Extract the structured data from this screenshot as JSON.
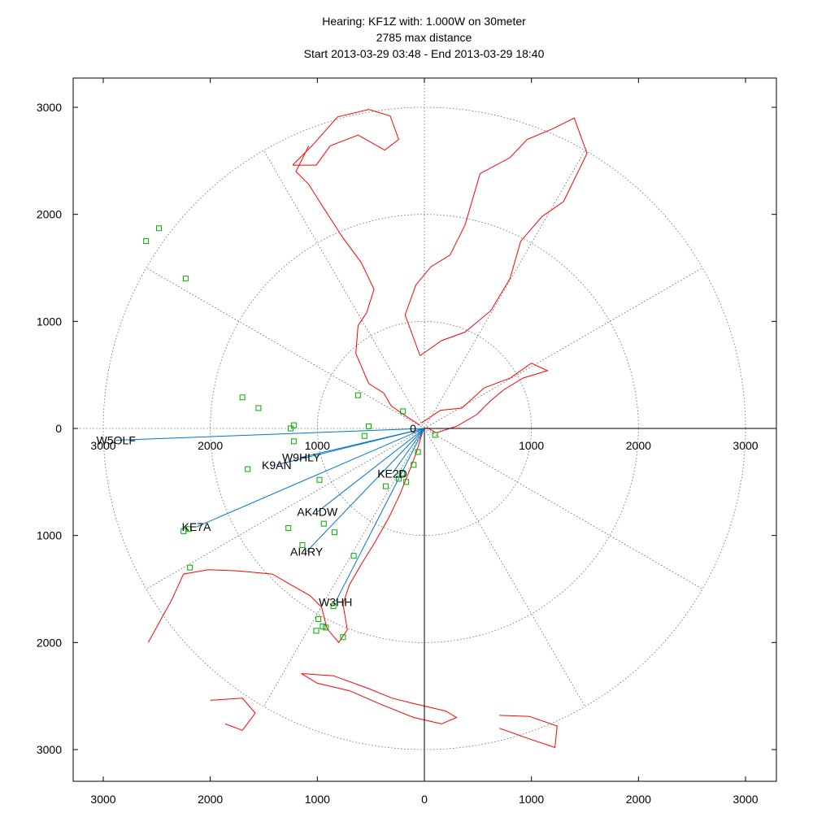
{
  "header": {
    "line1": "Hearing: KF1Z with: 1.000W on 30meter",
    "line2": "2785 max distance",
    "line3": "Start 2013-03-29 03:48 - End 2013-03-29 18:40"
  },
  "chart_data": {
    "type": "scatter",
    "title": "Hearing: KF1Z with: 1.000W on 30meter",
    "subtitle": [
      "2785 max distance",
      "Start 2013-03-29 03:48 - End 2013-03-29 18:40"
    ],
    "projection": "polar-azimuthal",
    "xlim": [
      3300,
      -3300
    ],
    "ylim": [
      3300,
      -3300
    ],
    "x_tick_labels": [
      "3000",
      "2000",
      "1000",
      "0",
      "1000",
      "2000",
      "3000"
    ],
    "x_ticks": [
      -3000,
      -2000,
      -1000,
      0,
      1000,
      2000,
      3000
    ],
    "y_tick_labels": [
      "3000",
      "2000",
      "1000",
      "0",
      "1000",
      "2000",
      "3000"
    ],
    "y_ticks": [
      3000,
      2000,
      1000,
      0,
      -1000,
      -2000,
      -3000
    ],
    "ring_radii": [
      1000,
      2000,
      3000
    ],
    "spoke_angles_deg": [
      0,
      30,
      60,
      90,
      120,
      150,
      180,
      210,
      240,
      270,
      300,
      330
    ],
    "grid": true,
    "colors": {
      "map": "#ff0000",
      "spots": "#00aa00",
      "paths": "#0077cc",
      "grid": "#666666",
      "axes": "#000000"
    },
    "spots": [
      {
        "x": -2600,
        "y": 1750
      },
      {
        "x": -2480,
        "y": 1870
      },
      {
        "x": -2230,
        "y": 1400
      },
      {
        "x": -1700,
        "y": 290
      },
      {
        "x": -1550,
        "y": 190
      },
      {
        "x": -620,
        "y": 310
      },
      {
        "x": -200,
        "y": 160
      },
      {
        "x": -1250,
        "y": 0
      },
      {
        "x": -1220,
        "y": 30
      },
      {
        "x": -520,
        "y": 20
      },
      {
        "x": -560,
        "y": -70
      },
      {
        "x": -1220,
        "y": -120
      },
      {
        "x": 100,
        "y": -60
      },
      {
        "x": -60,
        "y": -220
      },
      {
        "x": -100,
        "y": -340
      },
      {
        "x": -210,
        "y": -420
      },
      {
        "x": -240,
        "y": -470
      },
      {
        "x": -170,
        "y": -500
      },
      {
        "x": -360,
        "y": -540
      },
      {
        "x": -980,
        "y": -480
      },
      {
        "x": -1650,
        "y": -380
      },
      {
        "x": -2200,
        "y": -940
      },
      {
        "x": -2250,
        "y": -960
      },
      {
        "x": -1270,
        "y": -930
      },
      {
        "x": -940,
        "y": -890
      },
      {
        "x": -840,
        "y": -970
      },
      {
        "x": -1140,
        "y": -1090
      },
      {
        "x": -660,
        "y": -1190
      },
      {
        "x": -2190,
        "y": -1300
      },
      {
        "x": -850,
        "y": -1660
      },
      {
        "x": -990,
        "y": -1780
      },
      {
        "x": -950,
        "y": -1850
      },
      {
        "x": -920,
        "y": -1860
      },
      {
        "x": -1010,
        "y": -1890
      },
      {
        "x": -760,
        "y": -1950
      }
    ],
    "paths": [
      {
        "label": "W5OLF",
        "x": -2880,
        "y": -110
      },
      {
        "label": "W9HLY",
        "x": -1150,
        "y": -270
      },
      {
        "label": "K9AN",
        "x": -1380,
        "y": -340
      },
      {
        "label": "KE7A",
        "x": -2130,
        "y": -920
      },
      {
        "label": "AK4DW",
        "x": -1000,
        "y": -780
      },
      {
        "label": "AI4RY",
        "x": -1100,
        "y": -1150
      },
      {
        "label": "KE2D",
        "x": -300,
        "y": -420
      },
      {
        "label": "W3HH",
        "x": -830,
        "y": -1620
      }
    ],
    "station_labels": [
      "W5OLF",
      "W9HLY",
      "K9AN",
      "KE7A",
      "AK4DW",
      "AI4RY",
      "KE2D",
      "W3HH"
    ],
    "coastline_polylines": [
      [
        [
          -40,
          30
        ],
        [
          -180,
          120
        ],
        [
          -310,
          210
        ],
        [
          -380,
          330
        ],
        [
          -520,
          420
        ],
        [
          -640,
          700
        ],
        [
          -620,
          960
        ],
        [
          -540,
          1080
        ],
        [
          -470,
          1300
        ],
        [
          -590,
          1550
        ],
        [
          -760,
          1780
        ],
        [
          -980,
          2120
        ],
        [
          -1080,
          2280
        ],
        [
          -1200,
          2400
        ],
        [
          -1080,
          2640
        ]
      ],
      [
        [
          -10,
          -10
        ],
        [
          -80,
          -240
        ],
        [
          -150,
          -420
        ],
        [
          -230,
          -620
        ],
        [
          -330,
          -830
        ],
        [
          -460,
          -1060
        ],
        [
          -590,
          -1270
        ],
        [
          -700,
          -1460
        ],
        [
          -760,
          -1640
        ],
        [
          -720,
          -1880
        ],
        [
          -800,
          -2000
        ],
        [
          -910,
          -1870
        ],
        [
          -960,
          -1670
        ],
        [
          -1070,
          -1560
        ],
        [
          -1230,
          -1470
        ],
        [
          -1420,
          -1360
        ],
        [
          -1750,
          -1330
        ],
        [
          -2020,
          -1320
        ],
        [
          -2250,
          -1360
        ],
        [
          -2360,
          -1600
        ],
        [
          -2580,
          -2000
        ]
      ],
      [
        [
          -30,
          50
        ],
        [
          150,
          170
        ],
        [
          350,
          190
        ],
        [
          560,
          380
        ],
        [
          800,
          470
        ],
        [
          1000,
          610
        ],
        [
          1150,
          540
        ],
        [
          920,
          470
        ],
        [
          740,
          360
        ],
        [
          620,
          260
        ],
        [
          490,
          130
        ],
        [
          300,
          20
        ],
        [
          110,
          -40
        ],
        [
          20,
          10
        ]
      ],
      [
        [
          -40,
          680
        ],
        [
          160,
          820
        ],
        [
          380,
          900
        ],
        [
          620,
          1100
        ],
        [
          800,
          1400
        ],
        [
          900,
          1750
        ],
        [
          1100,
          1980
        ],
        [
          1300,
          2120
        ],
        [
          1520,
          2570
        ],
        [
          1400,
          2900
        ],
        [
          1200,
          2800
        ],
        [
          960,
          2700
        ],
        [
          800,
          2530
        ],
        [
          520,
          2380
        ],
        [
          380,
          1900
        ],
        [
          240,
          1620
        ],
        [
          60,
          1510
        ],
        [
          -80,
          1340
        ],
        [
          -180,
          1060
        ],
        [
          -40,
          680
        ]
      ],
      [
        [
          -1230,
          2460
        ],
        [
          -1050,
          2640
        ],
        [
          -810,
          2910
        ],
        [
          -520,
          2980
        ],
        [
          -320,
          2920
        ],
        [
          -240,
          2700
        ],
        [
          -370,
          2600
        ],
        [
          -620,
          2740
        ],
        [
          -880,
          2640
        ],
        [
          -1010,
          2460
        ],
        [
          -1230,
          2460
        ]
      ],
      [
        [
          -1150,
          -2290
        ],
        [
          -850,
          -2310
        ],
        [
          -520,
          -2430
        ],
        [
          -300,
          -2520
        ],
        [
          -100,
          -2570
        ],
        [
          200,
          -2640
        ],
        [
          300,
          -2700
        ],
        [
          160,
          -2760
        ],
        [
          -100,
          -2700
        ],
        [
          -400,
          -2580
        ],
        [
          -700,
          -2450
        ],
        [
          -1000,
          -2380
        ],
        [
          -1150,
          -2290
        ]
      ],
      [
        [
          700,
          -2680
        ],
        [
          980,
          -2690
        ],
        [
          1240,
          -2780
        ],
        [
          1220,
          -2980
        ],
        [
          980,
          -2900
        ],
        [
          700,
          -2800
        ]
      ],
      [
        [
          -2000,
          -2540
        ],
        [
          -1700,
          -2520
        ],
        [
          -1580,
          -2660
        ],
        [
          -1700,
          -2820
        ],
        [
          -1860,
          -2760
        ]
      ]
    ]
  }
}
